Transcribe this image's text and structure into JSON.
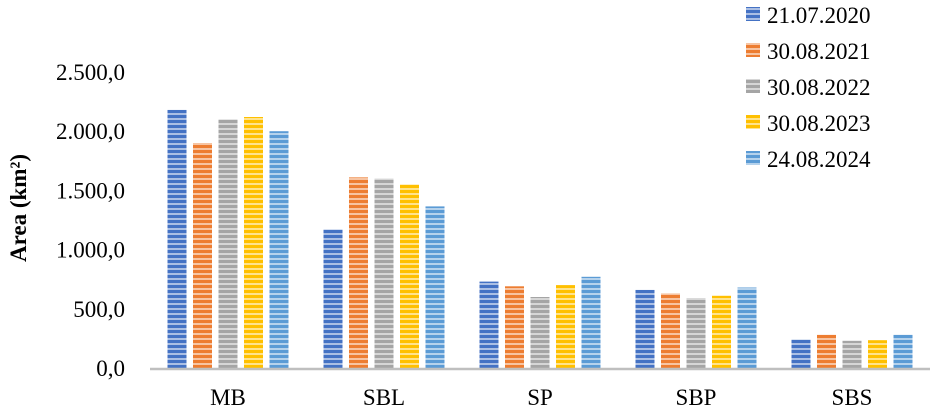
{
  "chart_data": {
    "type": "bar",
    "title": "",
    "xlabel": "",
    "ylabel": "Area (km²)",
    "ylim": [
      0,
      2500
    ],
    "yticks": [
      "0,0",
      "500,0",
      "1.000,0",
      "1.500,0",
      "2.000,0",
      "2.500,0"
    ],
    "grid": false,
    "legend": "top-right",
    "categories": [
      "MB",
      "SBL",
      "SP",
      "SBP",
      "SBS"
    ],
    "series": [
      {
        "name": "21.07.2020",
        "color": "#4472C4",
        "values": [
          2180,
          1170,
          730,
          660,
          240
        ]
      },
      {
        "name": "30.08.2021",
        "color": "#ED7D31",
        "values": [
          1900,
          1610,
          690,
          630,
          280
        ]
      },
      {
        "name": "30.08.2022",
        "color": "#A5A5A5",
        "values": [
          2100,
          1600,
          600,
          590,
          230
        ]
      },
      {
        "name": "30.08.2023",
        "color": "#FFC000",
        "values": [
          2120,
          1550,
          700,
          610,
          235
        ]
      },
      {
        "name": "24.08.2024",
        "color": "#5B9BD5",
        "values": [
          2000,
          1365,
          770,
          680,
          280
        ]
      }
    ]
  }
}
